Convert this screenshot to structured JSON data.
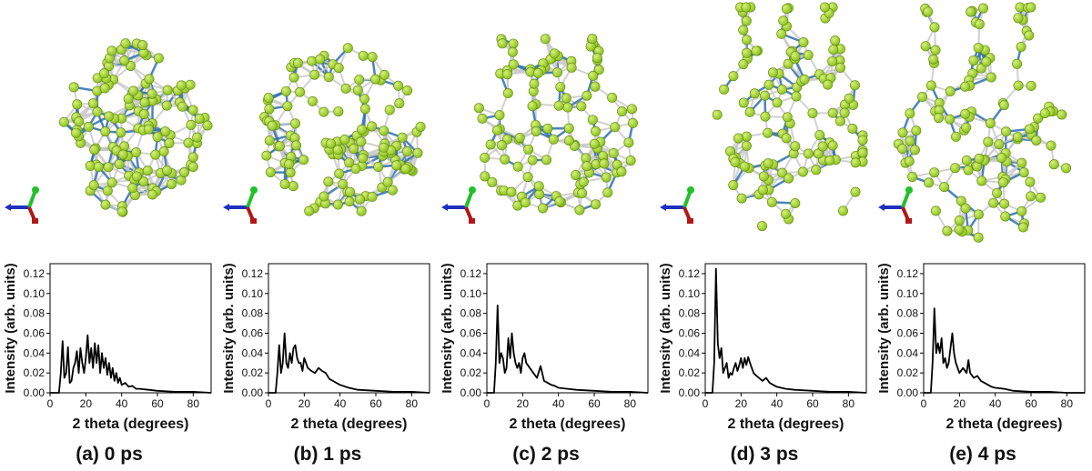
{
  "figure": {
    "panels": [
      {
        "caption": "(a) 0 ps",
        "time_ps": 0
      },
      {
        "caption": "(b) 1 ps",
        "time_ps": 1
      },
      {
        "caption": "(c) 2 ps",
        "time_ps": 2
      },
      {
        "caption": "(d) 3 ps",
        "time_ps": 3
      },
      {
        "caption": "(e) 4 ps",
        "time_ps": 4
      }
    ],
    "colors": {
      "atom": "#8cc21f",
      "atom_highlight": "#d7f07a",
      "bond": "#c9c9c9",
      "blue_bond": "#2f6fb0",
      "axis_x": "#1f2fbf",
      "axis_y": "#22c02a",
      "axis_z": "#b01818",
      "line": "#000000"
    },
    "structure_icon": "molecular-structure"
  },
  "chart_data": [
    {
      "type": "line",
      "xlabel": "2 theta (degrees)",
      "ylabel": "Intensity (arb. units)",
      "xlim": [
        0,
        90
      ],
      "ylim": [
        0,
        0.13
      ],
      "xticks": [
        "0",
        "20",
        "40",
        "60",
        "80"
      ],
      "yticks": [
        "0.00",
        "0.02",
        "0.04",
        "0.06",
        "0.08",
        "0.10",
        "0.12"
      ],
      "series": [
        {
          "x": [
            0,
            5,
            6,
            7,
            8,
            9,
            10,
            11,
            12,
            13,
            14,
            15,
            16,
            17,
            18,
            19,
            20,
            21,
            22,
            23,
            24,
            25,
            26,
            27,
            28,
            29,
            30,
            31,
            32,
            33,
            34,
            35,
            36,
            37,
            38,
            39,
            40,
            42,
            44,
            46,
            48,
            50,
            55,
            60,
            70,
            80,
            90
          ],
          "y": [
            0.0,
            0.0,
            0.02,
            0.052,
            0.015,
            0.02,
            0.046,
            0.01,
            0.012,
            0.025,
            0.03,
            0.042,
            0.02,
            0.045,
            0.03,
            0.02,
            0.035,
            0.058,
            0.03,
            0.045,
            0.025,
            0.05,
            0.03,
            0.048,
            0.02,
            0.04,
            0.025,
            0.035,
            0.018,
            0.03,
            0.015,
            0.025,
            0.012,
            0.02,
            0.01,
            0.015,
            0.008,
            0.01,
            0.006,
            0.007,
            0.004,
            0.004,
            0.003,
            0.002,
            0.001,
            0.001,
            0.0
          ]
        }
      ]
    },
    {
      "type": "line",
      "xlabel": "2 theta (degrees)",
      "ylabel": "Intensity (arb. units)",
      "xlim": [
        0,
        90
      ],
      "ylim": [
        0,
        0.13
      ],
      "xticks": [
        "0",
        "20",
        "40",
        "60",
        "80"
      ],
      "yticks": [
        "0.00",
        "0.02",
        "0.04",
        "0.06",
        "0.08",
        "0.10",
        "0.12"
      ],
      "series": [
        {
          "x": [
            0,
            4,
            5,
            6,
            7,
            8,
            9,
            10,
            11,
            12,
            13,
            14,
            15,
            16,
            17,
            18,
            19,
            20,
            22,
            24,
            26,
            28,
            30,
            32,
            34,
            36,
            38,
            40,
            45,
            50,
            60,
            70,
            80,
            90
          ],
          "y": [
            0.0,
            0.0,
            0.02,
            0.048,
            0.02,
            0.03,
            0.06,
            0.03,
            0.025,
            0.04,
            0.03,
            0.045,
            0.048,
            0.035,
            0.03,
            0.03,
            0.022,
            0.035,
            0.025,
            0.022,
            0.02,
            0.025,
            0.022,
            0.02,
            0.014,
            0.012,
            0.01,
            0.008,
            0.005,
            0.003,
            0.002,
            0.001,
            0.001,
            0.0
          ]
        }
      ]
    },
    {
      "type": "line",
      "xlabel": "2 theta (degrees)",
      "ylabel": "Intensity (arb. units)",
      "xlim": [
        0,
        90
      ],
      "ylim": [
        0,
        0.13
      ],
      "xticks": [
        "0",
        "20",
        "40",
        "60",
        "80"
      ],
      "yticks": [
        "0.00",
        "0.02",
        "0.04",
        "0.06",
        "0.08",
        "0.10",
        "0.12"
      ],
      "series": [
        {
          "x": [
            0,
            4,
            5,
            6,
            7,
            8,
            9,
            10,
            11,
            12,
            13,
            14,
            15,
            16,
            17,
            18,
            19,
            20,
            21,
            22,
            24,
            26,
            28,
            30,
            32,
            34,
            36,
            38,
            40,
            45,
            50,
            60,
            70,
            80,
            90
          ],
          "y": [
            0.0,
            0.0,
            0.03,
            0.088,
            0.03,
            0.04,
            0.035,
            0.02,
            0.025,
            0.055,
            0.035,
            0.06,
            0.04,
            0.03,
            0.025,
            0.03,
            0.02,
            0.035,
            0.04,
            0.03,
            0.025,
            0.02,
            0.015,
            0.027,
            0.012,
            0.01,
            0.008,
            0.007,
            0.005,
            0.004,
            0.003,
            0.002,
            0.001,
            0.001,
            0.0
          ]
        }
      ]
    },
    {
      "type": "line",
      "xlabel": "2 theta (degrees)",
      "ylabel": "Intensity (arb. units)",
      "xlim": [
        0,
        90
      ],
      "ylim": [
        0,
        0.13
      ],
      "xticks": [
        "0",
        "20",
        "40",
        "60",
        "80"
      ],
      "yticks": [
        "0.00",
        "0.02",
        "0.04",
        "0.06",
        "0.08",
        "0.10",
        "0.12"
      ],
      "series": [
        {
          "x": [
            0,
            4,
            5,
            6,
            7,
            8,
            9,
            10,
            11,
            12,
            13,
            14,
            15,
            16,
            17,
            18,
            19,
            20,
            21,
            22,
            23,
            24,
            25,
            26,
            27,
            28,
            30,
            32,
            34,
            36,
            38,
            40,
            45,
            50,
            60,
            70,
            80,
            90
          ],
          "y": [
            0.0,
            0.0,
            0.03,
            0.125,
            0.05,
            0.035,
            0.045,
            0.02,
            0.025,
            0.03,
            0.015,
            0.02,
            0.018,
            0.025,
            0.03,
            0.022,
            0.028,
            0.035,
            0.025,
            0.035,
            0.028,
            0.036,
            0.03,
            0.025,
            0.02,
            0.018,
            0.015,
            0.012,
            0.015,
            0.01,
            0.008,
            0.006,
            0.004,
            0.003,
            0.002,
            0.001,
            0.001,
            0.0
          ]
        }
      ]
    },
    {
      "type": "line",
      "xlabel": "2 theta (degrees)",
      "ylabel": "Intensity (arb. units)",
      "xlim": [
        0,
        90
      ],
      "ylim": [
        0,
        0.13
      ],
      "xticks": [
        "0",
        "20",
        "40",
        "60",
        "80"
      ],
      "yticks": [
        "0.00",
        "0.02",
        "0.04",
        "0.06",
        "0.08",
        "0.10",
        "0.12"
      ],
      "series": [
        {
          "x": [
            0,
            4,
            5,
            6,
            7,
            8,
            9,
            10,
            11,
            12,
            13,
            14,
            15,
            16,
            17,
            18,
            19,
            20,
            22,
            24,
            25,
            26,
            28,
            30,
            32,
            34,
            36,
            38,
            40,
            45,
            50,
            60,
            70,
            80,
            90
          ],
          "y": [
            0.0,
            0.0,
            0.03,
            0.085,
            0.04,
            0.05,
            0.04,
            0.055,
            0.03,
            0.035,
            0.025,
            0.03,
            0.045,
            0.06,
            0.04,
            0.03,
            0.025,
            0.02,
            0.025,
            0.02,
            0.033,
            0.02,
            0.015,
            0.017,
            0.012,
            0.01,
            0.008,
            0.006,
            0.005,
            0.004,
            0.002,
            0.001,
            0.001,
            0.0,
            0.0
          ]
        }
      ]
    }
  ]
}
